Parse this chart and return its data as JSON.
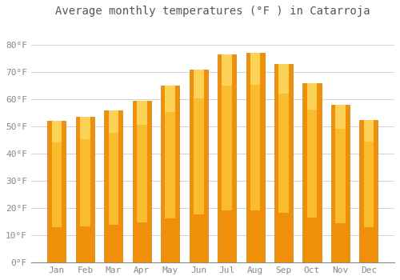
{
  "title": "Average monthly temperatures (°F ) in Catarroja",
  "months": [
    "Jan",
    "Feb",
    "Mar",
    "Apr",
    "May",
    "Jun",
    "Jul",
    "Aug",
    "Sep",
    "Oct",
    "Nov",
    "Dec"
  ],
  "values": [
    52,
    53.5,
    56,
    59.5,
    65,
    71,
    76.5,
    77,
    73,
    66,
    58,
    52.5
  ],
  "ylim": [
    0,
    88
  ],
  "yticks": [
    0,
    10,
    20,
    30,
    40,
    50,
    60,
    70,
    80
  ],
  "ytick_labels": [
    "0°F",
    "10°F",
    "20°F",
    "30°F",
    "40°F",
    "50°F",
    "60°F",
    "70°F",
    "80°F"
  ],
  "bg_color": "#FFFFFF",
  "grid_color": "#CCCCCC",
  "bar_color_light": "#FFD040",
  "bar_color_dark": "#F0900A",
  "bar_edge_color": "#C8820A",
  "title_fontsize": 10,
  "tick_fontsize": 8,
  "tick_color": "#888888"
}
